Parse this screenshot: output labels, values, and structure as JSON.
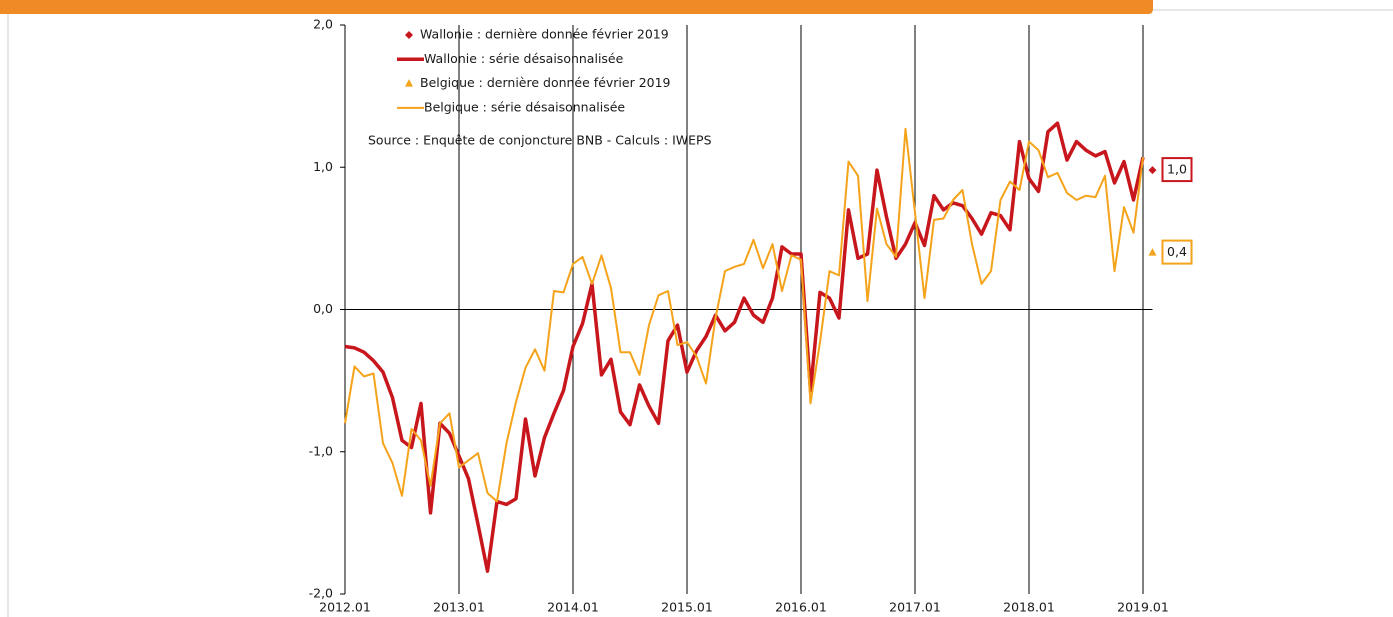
{
  "chart_data": {
    "type": "line",
    "categories": [
      "2012.01",
      null,
      null,
      null,
      null,
      null,
      null,
      null,
      null,
      null,
      null,
      null,
      "2013.01",
      null,
      null,
      null,
      null,
      null,
      null,
      null,
      null,
      null,
      null,
      null,
      "2014.01",
      null,
      null,
      null,
      null,
      null,
      null,
      null,
      null,
      null,
      null,
      null,
      "2015.01",
      null,
      null,
      null,
      null,
      null,
      null,
      null,
      null,
      null,
      null,
      null,
      "2016.01",
      null,
      null,
      null,
      null,
      null,
      null,
      null,
      null,
      null,
      null,
      null,
      "2017.01",
      null,
      null,
      null,
      null,
      null,
      null,
      null,
      null,
      null,
      null,
      null,
      "2018.01",
      null,
      null,
      null,
      null,
      null,
      null,
      null,
      null,
      null,
      null,
      null,
      "2019.01",
      null
    ],
    "ylim": [
      -2,
      2
    ],
    "yticks": [
      {
        "value": -2,
        "label": "-2,0"
      },
      {
        "value": -1,
        "label": "-1,0"
      },
      {
        "value": 0,
        "label": "0,0"
      },
      {
        "value": 1,
        "label": "1,0"
      },
      {
        "value": 2,
        "label": "2,0"
      }
    ],
    "annotation": "Source : Enquête de conjoncture BNB - Calculs : IWEPS",
    "series": [
      {
        "name": "Wallonie : dernière donnée février 2019",
        "color": "#c8161d",
        "style": "diamond",
        "values": [
          null,
          null,
          null,
          null,
          null,
          null,
          null,
          null,
          null,
          null,
          null,
          null,
          null,
          null,
          null,
          null,
          null,
          null,
          null,
          null,
          null,
          null,
          null,
          null,
          null,
          null,
          null,
          null,
          null,
          null,
          null,
          null,
          null,
          null,
          null,
          null,
          null,
          null,
          null,
          null,
          null,
          null,
          null,
          null,
          null,
          null,
          null,
          null,
          null,
          null,
          null,
          null,
          null,
          null,
          null,
          null,
          null,
          null,
          null,
          null,
          null,
          null,
          null,
          null,
          null,
          null,
          null,
          null,
          null,
          null,
          null,
          null,
          null,
          null,
          null,
          null,
          null,
          null,
          null,
          null,
          null,
          null,
          null,
          null,
          null,
          0.98
        ],
        "value_labels": [
          null,
          null,
          null,
          null,
          null,
          null,
          null,
          null,
          null,
          null,
          null,
          null,
          null,
          null,
          null,
          null,
          null,
          null,
          null,
          null,
          null,
          null,
          null,
          null,
          null,
          null,
          null,
          null,
          null,
          null,
          null,
          null,
          null,
          null,
          null,
          null,
          null,
          null,
          null,
          null,
          null,
          null,
          null,
          null,
          null,
          null,
          null,
          null,
          null,
          null,
          null,
          null,
          null,
          null,
          null,
          null,
          null,
          null,
          null,
          null,
          null,
          null,
          null,
          null,
          null,
          null,
          null,
          null,
          null,
          null,
          null,
          null,
          null,
          null,
          null,
          null,
          null,
          null,
          null,
          null,
          null,
          null,
          null,
          null,
          null,
          "1,0"
        ]
      },
      {
        "name": "Wallonie : série désaisonnalisée",
        "color": "#c8161d",
        "style": "line",
        "values": [
          -0.26,
          -0.27,
          -0.3,
          -0.36,
          -0.44,
          -0.62,
          -0.92,
          -0.97,
          -0.66,
          -1.43,
          -0.8,
          -0.87,
          -1.03,
          -1.19,
          -1.51,
          -1.84,
          -1.35,
          -1.37,
          -1.33,
          -0.77,
          -1.17,
          -0.9,
          -0.73,
          -0.57,
          -0.26,
          -0.1,
          0.18,
          -0.46,
          -0.35,
          -0.72,
          -0.81,
          -0.53,
          -0.68,
          -0.8,
          -0.22,
          -0.11,
          -0.44,
          -0.29,
          -0.19,
          -0.04,
          -0.15,
          -0.09,
          0.08,
          -0.04,
          -0.09,
          0.08,
          0.44,
          0.39,
          0.39,
          -0.57,
          0.12,
          0.08,
          -0.06,
          0.7,
          0.36,
          0.39,
          0.98,
          0.65,
          0.36,
          0.46,
          0.61,
          0.45,
          0.8,
          0.7,
          0.75,
          0.73,
          0.64,
          0.53,
          0.68,
          0.66,
          0.56,
          1.18,
          0.92,
          0.83,
          1.25,
          1.31,
          1.05,
          1.18,
          1.12,
          1.08,
          1.11,
          0.89,
          1.04,
          0.77,
          1.07,
          null
        ]
      },
      {
        "name": "Belgique : dernière donnée février 2019",
        "color": "#f5a31a",
        "style": "triangle",
        "values": [
          null,
          null,
          null,
          null,
          null,
          null,
          null,
          null,
          null,
          null,
          null,
          null,
          null,
          null,
          null,
          null,
          null,
          null,
          null,
          null,
          null,
          null,
          null,
          null,
          null,
          null,
          null,
          null,
          null,
          null,
          null,
          null,
          null,
          null,
          null,
          null,
          null,
          null,
          null,
          null,
          null,
          null,
          null,
          null,
          null,
          null,
          null,
          null,
          null,
          null,
          null,
          null,
          null,
          null,
          null,
          null,
          null,
          null,
          null,
          null,
          null,
          null,
          null,
          null,
          null,
          null,
          null,
          null,
          null,
          null,
          null,
          null,
          null,
          null,
          null,
          null,
          null,
          null,
          null,
          null,
          null,
          null,
          null,
          null,
          null,
          0.4
        ],
        "value_labels": [
          null,
          null,
          null,
          null,
          null,
          null,
          null,
          null,
          null,
          null,
          null,
          null,
          null,
          null,
          null,
          null,
          null,
          null,
          null,
          null,
          null,
          null,
          null,
          null,
          null,
          null,
          null,
          null,
          null,
          null,
          null,
          null,
          null,
          null,
          null,
          null,
          null,
          null,
          null,
          null,
          null,
          null,
          null,
          null,
          null,
          null,
          null,
          null,
          null,
          null,
          null,
          null,
          null,
          null,
          null,
          null,
          null,
          null,
          null,
          null,
          null,
          null,
          null,
          null,
          null,
          null,
          null,
          null,
          null,
          null,
          null,
          null,
          null,
          null,
          null,
          null,
          null,
          null,
          null,
          null,
          null,
          null,
          null,
          null,
          null,
          "0,4"
        ]
      },
      {
        "name": "Belgique : série désaisonnalisée",
        "color": "#f5a31a",
        "style": "line",
        "values": [
          -0.8,
          -0.4,
          -0.47,
          -0.45,
          -0.94,
          -1.08,
          -1.31,
          -0.84,
          -0.92,
          -1.24,
          -0.8,
          -0.73,
          -1.11,
          -1.06,
          -1.01,
          -1.29,
          -1.35,
          -0.94,
          -0.65,
          -0.41,
          -0.28,
          -0.43,
          0.13,
          0.12,
          0.32,
          0.37,
          0.18,
          0.38,
          0.15,
          -0.3,
          -0.3,
          -0.46,
          -0.11,
          0.1,
          0.13,
          -0.25,
          -0.23,
          -0.33,
          -0.52,
          -0.06,
          0.27,
          0.3,
          0.32,
          0.49,
          0.29,
          0.46,
          0.13,
          0.38,
          0.35,
          -0.66,
          -0.23,
          0.27,
          0.24,
          1.04,
          0.94,
          0.06,
          0.71,
          0.46,
          0.37,
          1.27,
          0.68,
          0.08,
          0.63,
          0.64,
          0.77,
          0.84,
          0.46,
          0.18,
          0.27,
          0.77,
          0.9,
          0.84,
          1.18,
          1.12,
          0.93,
          0.96,
          0.82,
          0.77,
          0.8,
          0.79,
          0.94,
          0.27,
          0.72,
          0.54,
          1.07,
          null
        ]
      }
    ]
  }
}
